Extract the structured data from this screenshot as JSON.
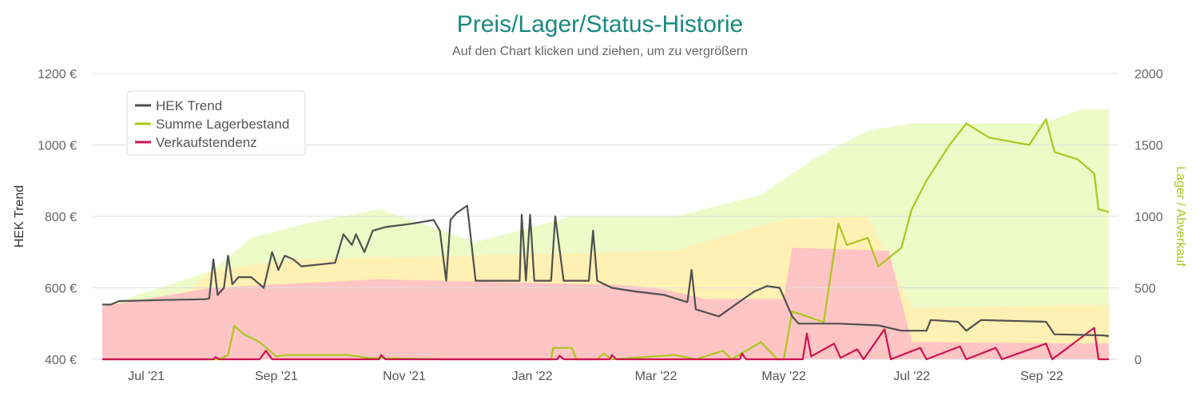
{
  "chart_data": {
    "type": "line",
    "title": "Preis/Lager/Status-Historie",
    "subtitle": "Auf den Chart klicken und ziehen, um zu vergrößern",
    "y_left": {
      "label": "HEK Trend",
      "range": [
        400,
        1200
      ],
      "ticks": [
        "400 €",
        "600 €",
        "800 €",
        "1000 €",
        "1200 €"
      ],
      "tick_values": [
        400,
        600,
        800,
        1000,
        1200
      ]
    },
    "y_right": {
      "label": "Lager / Abverkauf",
      "range": [
        0,
        2000
      ],
      "ticks": [
        "0",
        "500",
        "1000",
        "1500",
        "2000"
      ],
      "tick_values": [
        0,
        500,
        1000,
        1500,
        2000
      ]
    },
    "x_range": [
      "2021-06-10",
      "2022-10-03"
    ],
    "x_ticks": [
      {
        "date": "2021-07-01",
        "label": "Jul '21"
      },
      {
        "date": "2021-09-01",
        "label": "Sep '21"
      },
      {
        "date": "2021-11-01",
        "label": "Nov '21"
      },
      {
        "date": "2022-01-01",
        "label": "Jan '22"
      },
      {
        "date": "2022-03-01",
        "label": "Mar '22"
      },
      {
        "date": "2022-05-01",
        "label": "May '22"
      },
      {
        "date": "2022-07-01",
        "label": "Jul '22"
      },
      {
        "date": "2022-09-01",
        "label": "Sep '22"
      }
    ],
    "grid": true,
    "legend_position": "top-left",
    "colors": {
      "hek": "#505050",
      "lager": "#a8c81c",
      "verkauf": "#cc1450",
      "title": "#1a8a80",
      "band_red": "#ffc4c4",
      "band_yellow": "#fff0b4",
      "band_green": "#eefac8"
    },
    "series": [
      {
        "name": "HEK Trend",
        "axis": "left",
        "points": [
          [
            "2021-06-10",
            553
          ],
          [
            "2021-06-14",
            553
          ],
          [
            "2021-06-18",
            563
          ],
          [
            "2021-07-10",
            566
          ],
          [
            "2021-07-29",
            568
          ],
          [
            "2021-07-31",
            570
          ],
          [
            "2021-08-02",
            680
          ],
          [
            "2021-08-04",
            580
          ],
          [
            "2021-08-07",
            600
          ],
          [
            "2021-08-09",
            690
          ],
          [
            "2021-08-11",
            610
          ],
          [
            "2021-08-14",
            630
          ],
          [
            "2021-08-20",
            630
          ],
          [
            "2021-08-26",
            600
          ],
          [
            "2021-08-30",
            700
          ],
          [
            "2021-09-02",
            650
          ],
          [
            "2021-09-05",
            690
          ],
          [
            "2021-09-09",
            680
          ],
          [
            "2021-09-13",
            660
          ],
          [
            "2021-09-29",
            670
          ],
          [
            "2021-10-03",
            750
          ],
          [
            "2021-10-07",
            720
          ],
          [
            "2021-10-09",
            750
          ],
          [
            "2021-10-13",
            700
          ],
          [
            "2021-10-17",
            760
          ],
          [
            "2021-10-23",
            770
          ],
          [
            "2021-11-05",
            780
          ],
          [
            "2021-11-15",
            790
          ],
          [
            "2021-11-18",
            760
          ],
          [
            "2021-11-21",
            620
          ],
          [
            "2021-11-23",
            790
          ],
          [
            "2021-11-26",
            810
          ],
          [
            "2021-12-01",
            830
          ],
          [
            "2021-12-05",
            620
          ],
          [
            "2021-12-26",
            620
          ],
          [
            "2021-12-27",
            805
          ],
          [
            "2021-12-29",
            620
          ],
          [
            "2021-12-31",
            805
          ],
          [
            "2022-01-02",
            620
          ],
          [
            "2022-01-10",
            620
          ],
          [
            "2022-01-12",
            800
          ],
          [
            "2022-01-16",
            620
          ],
          [
            "2022-01-28",
            620
          ],
          [
            "2022-01-30",
            760
          ],
          [
            "2022-02-01",
            620
          ],
          [
            "2022-02-08",
            600
          ],
          [
            "2022-02-19",
            590
          ],
          [
            "2022-03-05",
            580
          ],
          [
            "2022-03-16",
            560
          ],
          [
            "2022-03-18",
            650
          ],
          [
            "2022-03-20",
            540
          ],
          [
            "2022-03-31",
            520
          ],
          [
            "2022-04-12",
            570
          ],
          [
            "2022-04-17",
            590
          ],
          [
            "2022-04-23",
            605
          ],
          [
            "2022-04-29",
            600
          ],
          [
            "2022-05-05",
            520
          ],
          [
            "2022-05-08",
            500
          ],
          [
            "2022-05-27",
            500
          ],
          [
            "2022-06-15",
            495
          ],
          [
            "2022-06-26",
            480
          ],
          [
            "2022-07-08",
            480
          ],
          [
            "2022-07-10",
            510
          ],
          [
            "2022-07-23",
            505
          ],
          [
            "2022-07-27",
            480
          ],
          [
            "2022-08-03",
            510
          ],
          [
            "2022-09-03",
            505
          ],
          [
            "2022-09-07",
            470
          ],
          [
            "2022-09-30",
            467
          ],
          [
            "2022-10-03",
            465
          ]
        ]
      },
      {
        "name": "Summe Lagerbestand",
        "axis": "right",
        "points": [
          [
            "2021-06-10",
            0
          ],
          [
            "2021-08-05",
            0
          ],
          [
            "2021-08-09",
            30
          ],
          [
            "2021-08-12",
            235
          ],
          [
            "2021-08-16",
            180
          ],
          [
            "2021-08-24",
            120
          ],
          [
            "2021-09-01",
            20
          ],
          [
            "2021-09-05",
            30
          ],
          [
            "2021-10-05",
            30
          ],
          [
            "2021-10-15",
            10
          ],
          [
            "2021-11-20",
            0
          ],
          [
            "2022-01-10",
            0
          ],
          [
            "2022-01-11",
            80
          ],
          [
            "2022-01-20",
            80
          ],
          [
            "2022-01-22",
            0
          ],
          [
            "2022-02-01",
            0
          ],
          [
            "2022-02-04",
            40
          ],
          [
            "2022-02-08",
            0
          ],
          [
            "2022-03-10",
            30
          ],
          [
            "2022-03-20",
            0
          ],
          [
            "2022-04-02",
            60
          ],
          [
            "2022-04-06",
            0
          ],
          [
            "2022-04-20",
            120
          ],
          [
            "2022-04-28",
            0
          ],
          [
            "2022-05-01",
            0
          ],
          [
            "2022-05-05",
            335
          ],
          [
            "2022-05-20",
            260
          ],
          [
            "2022-05-27",
            950
          ],
          [
            "2022-05-31",
            800
          ],
          [
            "2022-06-10",
            850
          ],
          [
            "2022-06-15",
            650
          ],
          [
            "2022-06-26",
            780
          ],
          [
            "2022-07-01",
            1050
          ],
          [
            "2022-07-08",
            1250
          ],
          [
            "2022-07-19",
            1500
          ],
          [
            "2022-07-27",
            1650
          ],
          [
            "2022-08-07",
            1550
          ],
          [
            "2022-08-26",
            1500
          ],
          [
            "2022-09-03",
            1680
          ],
          [
            "2022-09-07",
            1450
          ],
          [
            "2022-09-18",
            1400
          ],
          [
            "2022-09-26",
            1300
          ],
          [
            "2022-09-28",
            1050
          ],
          [
            "2022-10-03",
            1030
          ]
        ]
      },
      {
        "name": "Verkaufstendenz",
        "axis": "right",
        "points": [
          [
            "2021-06-10",
            0
          ],
          [
            "2021-08-02",
            0
          ],
          [
            "2021-08-03",
            15
          ],
          [
            "2021-08-05",
            0
          ],
          [
            "2021-08-24",
            0
          ],
          [
            "2021-08-27",
            60
          ],
          [
            "2021-08-30",
            0
          ],
          [
            "2021-10-20",
            0
          ],
          [
            "2021-10-21",
            30
          ],
          [
            "2021-10-23",
            0
          ],
          [
            "2022-01-13",
            0
          ],
          [
            "2022-01-14",
            25
          ],
          [
            "2022-01-16",
            0
          ],
          [
            "2022-02-07",
            0
          ],
          [
            "2022-02-08",
            30
          ],
          [
            "2022-02-10",
            0
          ],
          [
            "2022-04-10",
            0
          ],
          [
            "2022-04-11",
            40
          ],
          [
            "2022-04-13",
            0
          ],
          [
            "2022-05-10",
            0
          ],
          [
            "2022-05-12",
            180
          ],
          [
            "2022-05-14",
            20
          ],
          [
            "2022-05-25",
            110
          ],
          [
            "2022-05-28",
            10
          ],
          [
            "2022-06-05",
            70
          ],
          [
            "2022-06-08",
            0
          ],
          [
            "2022-06-18",
            210
          ],
          [
            "2022-06-21",
            0
          ],
          [
            "2022-07-05",
            80
          ],
          [
            "2022-07-08",
            0
          ],
          [
            "2022-07-24",
            90
          ],
          [
            "2022-07-27",
            0
          ],
          [
            "2022-08-10",
            80
          ],
          [
            "2022-08-13",
            0
          ],
          [
            "2022-09-03",
            110
          ],
          [
            "2022-09-06",
            0
          ],
          [
            "2022-09-26",
            220
          ],
          [
            "2022-09-28",
            0
          ],
          [
            "2022-10-03",
            0
          ]
        ]
      }
    ],
    "bands": [
      {
        "name": "red",
        "upper": [
          [
            "2021-06-10",
            370
          ],
          [
            "2021-08-01",
            500
          ],
          [
            "2021-10-20",
            560
          ],
          [
            "2022-02-10",
            520
          ],
          [
            "2022-03-01",
            500
          ],
          [
            "2022-03-25",
            420
          ],
          [
            "2022-05-01",
            420
          ],
          [
            "2022-05-05",
            780
          ],
          [
            "2022-06-20",
            760
          ],
          [
            "2022-07-01",
            120
          ],
          [
            "2022-10-03",
            110
          ]
        ]
      },
      {
        "name": "yellow",
        "upper": [
          [
            "2021-06-10",
            370
          ],
          [
            "2021-07-05",
            370
          ],
          [
            "2021-07-12",
            360
          ],
          [
            "2021-08-01",
            620
          ],
          [
            "2021-09-10",
            700
          ],
          [
            "2021-11-15",
            720
          ],
          [
            "2022-01-15",
            740
          ],
          [
            "2022-03-10",
            760
          ],
          [
            "2022-05-01",
            980
          ],
          [
            "2022-06-10",
            1000
          ],
          [
            "2022-07-01",
            360
          ],
          [
            "2022-10-03",
            380
          ]
        ]
      },
      {
        "name": "green",
        "upper": [
          [
            "2021-06-10",
            370
          ],
          [
            "2021-08-01",
            620
          ],
          [
            "2021-08-20",
            850
          ],
          [
            "2021-09-15",
            950
          ],
          [
            "2021-10-20",
            1050
          ],
          [
            "2021-12-05",
            820
          ],
          [
            "2022-01-20",
            1000
          ],
          [
            "2022-03-10",
            1000
          ],
          [
            "2022-04-20",
            1150
          ],
          [
            "2022-05-15",
            1400
          ],
          [
            "2022-06-10",
            1600
          ],
          [
            "2022-07-01",
            1650
          ],
          [
            "2022-09-01",
            1650
          ],
          [
            "2022-09-20",
            1750
          ],
          [
            "2022-10-03",
            1750
          ]
        ]
      }
    ]
  }
}
